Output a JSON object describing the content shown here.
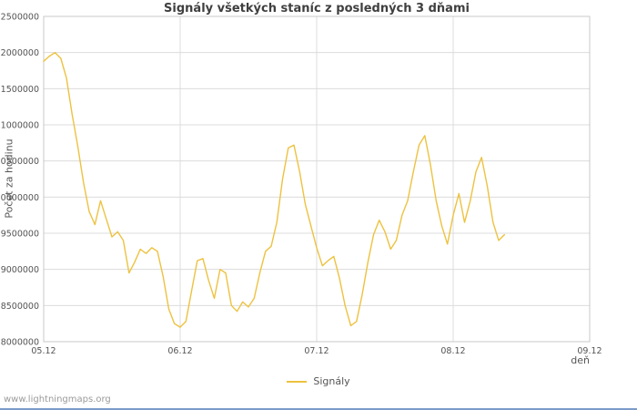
{
  "chart_data": {
    "type": "line",
    "title": "Signály všetkých staníc z posledných 3 dňami",
    "xlabel": "deň",
    "ylabel": "Počet za hodinu",
    "xlim": [
      5,
      9
    ],
    "ylim": [
      8000000,
      12500000
    ],
    "y_tick_step": 500000,
    "x_ticks": [
      {
        "value": 5,
        "label": "05.12"
      },
      {
        "value": 6,
        "label": "06.12"
      },
      {
        "value": 7,
        "label": "07.12"
      },
      {
        "value": 8,
        "label": "08.12"
      },
      {
        "value": 9,
        "label": "09.12"
      }
    ],
    "grid": true,
    "legend_position": "bottom-center",
    "series": [
      {
        "name": "Signály",
        "color": "#edc240",
        "x": [
          5.0,
          5.042,
          5.083,
          5.125,
          5.167,
          5.208,
          5.25,
          5.292,
          5.333,
          5.375,
          5.417,
          5.458,
          5.5,
          5.542,
          5.583,
          5.625,
          5.667,
          5.708,
          5.75,
          5.792,
          5.833,
          5.875,
          5.917,
          5.958,
          6.0,
          6.042,
          6.083,
          6.125,
          6.167,
          6.208,
          6.25,
          6.292,
          6.333,
          6.375,
          6.417,
          6.458,
          6.5,
          6.542,
          6.583,
          6.625,
          6.667,
          6.708,
          6.75,
          6.792,
          6.833,
          6.875,
          6.917,
          6.958,
          7.0,
          7.042,
          7.083,
          7.125,
          7.167,
          7.208,
          7.25,
          7.292,
          7.333,
          7.375,
          7.417,
          7.458,
          7.5,
          7.542,
          7.583,
          7.625,
          7.667,
          7.708,
          7.75,
          7.792,
          7.833,
          7.875,
          7.917,
          7.958,
          8.0,
          8.042,
          8.083,
          8.125,
          8.167,
          8.208,
          8.25,
          8.292,
          8.333,
          8.375
        ],
        "y": [
          11880000,
          11950000,
          12000000,
          11920000,
          11650000,
          11150000,
          10700000,
          10200000,
          9800000,
          9620000,
          9950000,
          9700000,
          9450000,
          9520000,
          9400000,
          8950000,
          9100000,
          9280000,
          9220000,
          9300000,
          9250000,
          8900000,
          8450000,
          8250000,
          8200000,
          8280000,
          8700000,
          9120000,
          9150000,
          8850000,
          8600000,
          9000000,
          8950000,
          8500000,
          8420000,
          8550000,
          8480000,
          8600000,
          8950000,
          9250000,
          9320000,
          9650000,
          10250000,
          10680000,
          10720000,
          10350000,
          9900000,
          9600000,
          9300000,
          9050000,
          9120000,
          9180000,
          8880000,
          8500000,
          8220000,
          8280000,
          8650000,
          9100000,
          9480000,
          9680000,
          9520000,
          9280000,
          9400000,
          9750000,
          9950000,
          10350000,
          10720000,
          10850000,
          10450000,
          9950000,
          9600000,
          9350000,
          9750000,
          10050000,
          9650000,
          9950000,
          10350000,
          10550000,
          10150000,
          9650000,
          9400000,
          9480000
        ]
      }
    ]
  },
  "watermark": "www.lightningmaps.org",
  "colors": {
    "grid": "#dcdcdc",
    "plot_border": "#c8c8c8",
    "text": "#545454",
    "accent_line": "#edc240",
    "bottom_bar": "#7b9cc9"
  }
}
